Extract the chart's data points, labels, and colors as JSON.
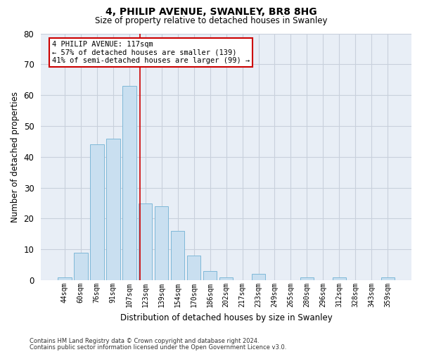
{
  "title1": "4, PHILIP AVENUE, SWANLEY, BR8 8HG",
  "title2": "Size of property relative to detached houses in Swanley",
  "xlabel": "Distribution of detached houses by size in Swanley",
  "ylabel": "Number of detached properties",
  "categories": [
    "44sqm",
    "60sqm",
    "76sqm",
    "91sqm",
    "107sqm",
    "123sqm",
    "139sqm",
    "154sqm",
    "170sqm",
    "186sqm",
    "202sqm",
    "217sqm",
    "233sqm",
    "249sqm",
    "265sqm",
    "280sqm",
    "296sqm",
    "312sqm",
    "328sqm",
    "343sqm",
    "359sqm"
  ],
  "values": [
    1,
    9,
    44,
    46,
    63,
    25,
    24,
    16,
    8,
    3,
    1,
    0,
    2,
    0,
    0,
    1,
    0,
    1,
    0,
    0,
    1
  ],
  "bar_color": "#c9dff0",
  "bar_edge_color": "#7fb8d8",
  "grid_color": "#c8d0dc",
  "background_color": "#e8eef6",
  "property_label": "4 PHILIP AVENUE: 117sqm",
  "annotation_line1": "← 57% of detached houses are smaller (139)",
  "annotation_line2": "41% of semi-detached houses are larger (99) →",
  "annotation_box_color": "#ffffff",
  "annotation_border_color": "#cc0000",
  "vline_color": "#cc0000",
  "ylim": [
    0,
    80
  ],
  "yticks": [
    0,
    10,
    20,
    30,
    40,
    50,
    60,
    70,
    80
  ],
  "footnote1": "Contains HM Land Registry data © Crown copyright and database right 2024.",
  "footnote2": "Contains public sector information licensed under the Open Government Licence v3.0.",
  "vline_x": 4.67
}
